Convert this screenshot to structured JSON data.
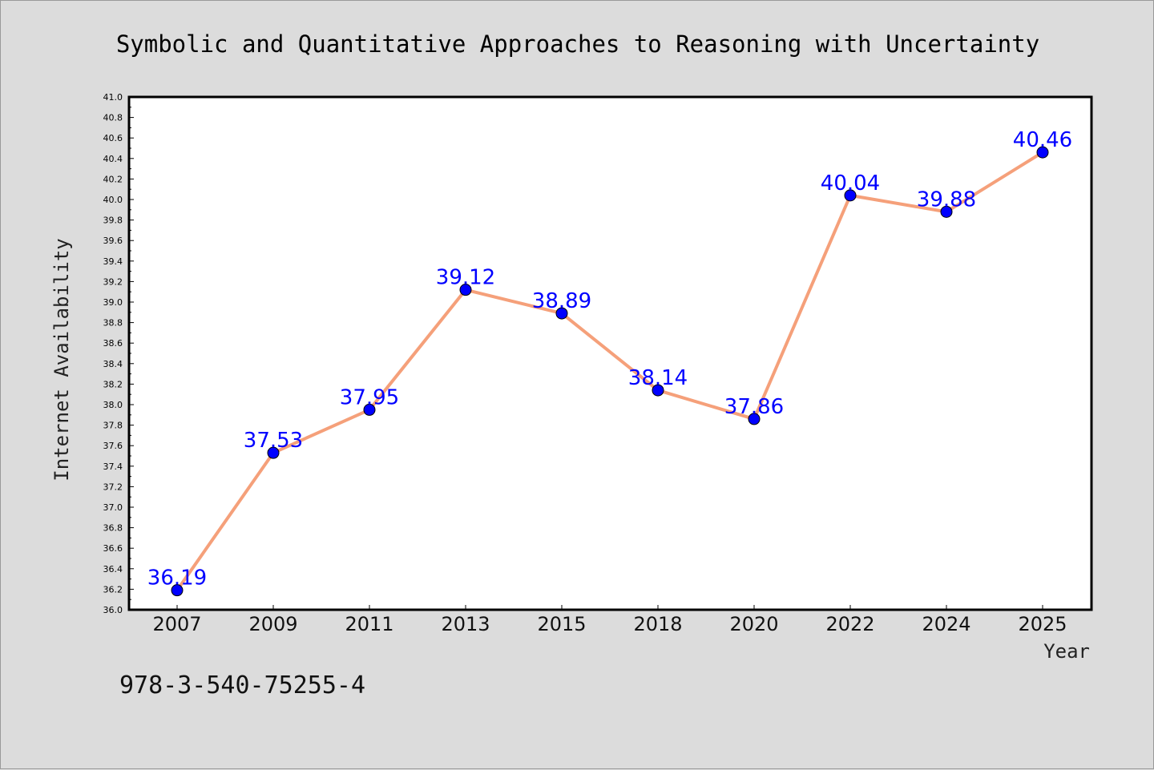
{
  "chart_data": {
    "type": "line",
    "title": "Symbolic and Quantitative Approaches to Reasoning with Uncertainty",
    "xlabel": "Year",
    "ylabel": "Internet Availability",
    "categories": [
      "2007",
      "2009",
      "2011",
      "2013",
      "2015",
      "2018",
      "2020",
      "2022",
      "2024",
      "2025"
    ],
    "series": [
      {
        "values": [
          36.19,
          37.53,
          37.95,
          39.12,
          38.89,
          38.14,
          37.86,
          40.04,
          39.88,
          40.46
        ],
        "labels": [
          "36.19",
          "37.53",
          "37.95",
          "39.12",
          "38.89",
          "38.14",
          "37.86",
          "40.04",
          "39.88",
          "40.46"
        ],
        "line_color": "#f5a07a",
        "marker_color": "#0000ff"
      }
    ],
    "ylim": [
      36.0,
      41.0
    ],
    "ytick_step": 0.2,
    "ytick_labels": [
      "36.0",
      "36.2",
      "36.4",
      "36.6",
      "36.8",
      "37.0",
      "37.2",
      "37.4",
      "37.6",
      "37.8",
      "38.0",
      "38.2",
      "38.4",
      "38.6",
      "38.8",
      "39.0",
      "39.2",
      "39.4",
      "39.6",
      "39.8",
      "40.0",
      "40.2",
      "40.4",
      "40.6",
      "40.8",
      "41.0"
    ],
    "grid": false,
    "legend": "none"
  },
  "footnote": "978-3-540-75255-4",
  "colors": {
    "background": "#dcdcdc",
    "plot_background": "#ffffff",
    "axis": "#000000"
  }
}
